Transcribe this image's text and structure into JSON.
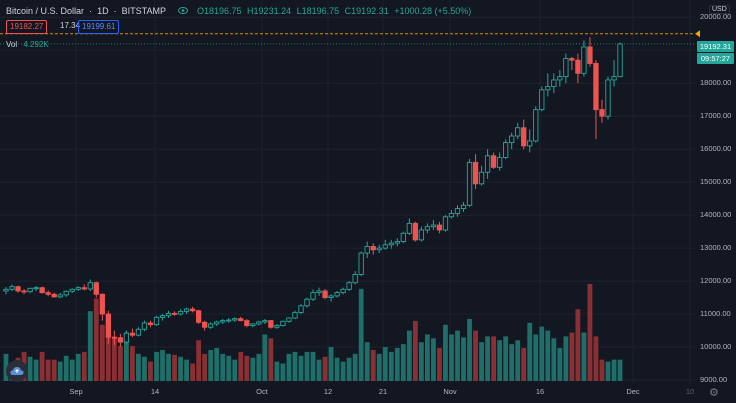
{
  "symbol": {
    "name": "Bitcoin / U.S. Dollar",
    "interval": "1D",
    "exchange": "BITSTAMP",
    "open": "O18196.75",
    "high": "H19231.24",
    "low": "L18196.75",
    "close": "C19192.31",
    "change": "+1000.28 (+5.50%)"
  },
  "trade": {
    "sell": "19182.27",
    "spread": "17.34",
    "buy": "19199.61"
  },
  "volume": {
    "label": "Vol",
    "value": "4.292K"
  },
  "price_axis": {
    "currency": "USD",
    "ticks": [
      "20000.00",
      "19000.00",
      "18000.00",
      "17000.00",
      "16000.00",
      "15000.00",
      "14000.00",
      "13000.00",
      "12000.00",
      "11000.00",
      "10000.00",
      "9000.00"
    ],
    "last_price": "19192.31",
    "countdown": "09:57:27"
  },
  "time_axis": [
    "Sep",
    "14",
    "Oct",
    "12",
    "21",
    "Nov",
    "16",
    "Dec",
    "10"
  ],
  "colors": {
    "up": "#26a69a",
    "down": "#ef5350",
    "vol_up": "#1e6f69",
    "vol_down": "#8a2f33",
    "grid": "#1e222d",
    "alert": "#f7a600"
  },
  "icons": {
    "visibility": "eye-icon",
    "settings": "gear-icon",
    "logo": "tradingview-cloud-icon"
  },
  "chart_data": {
    "type": "candlestick",
    "series": [
      {
        "ohlc": [
          [
            11700,
            11820,
            11600,
            11750
          ],
          [
            11750,
            11900,
            11700,
            11830
          ],
          [
            11830,
            11860,
            11650,
            11700
          ],
          [
            11700,
            11760,
            11600,
            11680
          ],
          [
            11680,
            11800,
            11630,
            11780
          ],
          [
            11780,
            11850,
            11700,
            11800
          ],
          [
            11800,
            11830,
            11620,
            11650
          ],
          [
            11650,
            11720,
            11540,
            11600
          ],
          [
            11600,
            11650,
            11500,
            11520
          ],
          [
            11520,
            11640,
            11480,
            11580
          ],
          [
            11580,
            11720,
            11520,
            11690
          ],
          [
            11690,
            11780,
            11640,
            11750
          ],
          [
            11750,
            11840,
            11700,
            11800
          ],
          [
            11800,
            11900,
            11720,
            11760
          ],
          [
            11760,
            12050,
            11700,
            11950
          ],
          [
            11950,
            11980,
            11500,
            11600
          ],
          [
            11600,
            11620,
            10800,
            11000
          ],
          [
            11000,
            11100,
            10100,
            10300
          ],
          [
            10300,
            10500,
            10050,
            10280
          ],
          [
            10280,
            10400,
            10000,
            10150
          ],
          [
            10150,
            10500,
            10100,
            10420
          ],
          [
            10420,
            10560,
            10300,
            10360
          ],
          [
            10360,
            10600,
            10320,
            10540
          ],
          [
            10540,
            10800,
            10480,
            10730
          ],
          [
            10730,
            10800,
            10600,
            10680
          ],
          [
            10680,
            10950,
            10640,
            10900
          ],
          [
            10900,
            11000,
            10800,
            10950
          ],
          [
            10950,
            11100,
            10880,
            11020
          ],
          [
            11020,
            11080,
            10950,
            11000
          ],
          [
            11000,
            11150,
            10960,
            11080
          ],
          [
            11080,
            11200,
            11000,
            11150
          ],
          [
            11150,
            11220,
            11050,
            11100
          ],
          [
            11100,
            11130,
            10700,
            10750
          ],
          [
            10750,
            10800,
            10500,
            10600
          ],
          [
            10600,
            10750,
            10550,
            10700
          ],
          [
            10700,
            10800,
            10640,
            10760
          ],
          [
            10760,
            10850,
            10700,
            10800
          ],
          [
            10800,
            10880,
            10740,
            10820
          ],
          [
            10820,
            10900,
            10760,
            10860
          ],
          [
            10860,
            10920,
            10780,
            10800
          ],
          [
            10800,
            10850,
            10600,
            10650
          ],
          [
            10650,
            10720,
            10600,
            10700
          ],
          [
            10700,
            10800,
            10660,
            10760
          ],
          [
            10760,
            10850,
            10700,
            10800
          ],
          [
            10800,
            10820,
            10560,
            10600
          ],
          [
            10600,
            10700,
            10550,
            10650
          ],
          [
            10650,
            10800,
            10620,
            10780
          ],
          [
            10780,
            10900,
            10740,
            10880
          ],
          [
            10880,
            11100,
            10850,
            11050
          ],
          [
            11050,
            11300,
            11000,
            11250
          ],
          [
            11250,
            11500,
            11200,
            11450
          ],
          [
            11450,
            11750,
            11400,
            11650
          ],
          [
            11650,
            11800,
            11550,
            11700
          ],
          [
            11700,
            11760,
            11450,
            11500
          ],
          [
            11500,
            11600,
            11380,
            11550
          ],
          [
            11550,
            11700,
            11500,
            11650
          ],
          [
            11650,
            11800,
            11600,
            11750
          ],
          [
            11750,
            12000,
            11700,
            11950
          ],
          [
            11950,
            12300,
            11900,
            12200
          ],
          [
            12200,
            12900,
            12150,
            12850
          ],
          [
            12850,
            13200,
            12700,
            13050
          ],
          [
            13050,
            13150,
            12800,
            12950
          ],
          [
            12950,
            13100,
            12850,
            13000
          ],
          [
            13000,
            13250,
            12950,
            13100
          ],
          [
            13100,
            13250,
            12980,
            13150
          ],
          [
            13150,
            13300,
            13050,
            13200
          ],
          [
            13200,
            13500,
            13150,
            13450
          ],
          [
            13450,
            13900,
            13400,
            13750
          ],
          [
            13750,
            13800,
            13200,
            13250
          ],
          [
            13250,
            13650,
            13200,
            13550
          ],
          [
            13550,
            13750,
            13450,
            13650
          ],
          [
            13650,
            13850,
            13550,
            13700
          ],
          [
            13700,
            13800,
            13450,
            13550
          ],
          [
            13550,
            14000,
            13500,
            13950
          ],
          [
            13950,
            14150,
            13900,
            14050
          ],
          [
            14050,
            14300,
            13950,
            14200
          ],
          [
            14200,
            14400,
            14100,
            14300
          ],
          [
            14300,
            15700,
            14250,
            15600
          ],
          [
            15600,
            15850,
            14800,
            14950
          ],
          [
            14950,
            15500,
            14900,
            15300
          ],
          [
            15300,
            16000,
            15100,
            15800
          ],
          [
            15800,
            15900,
            15400,
            15450
          ],
          [
            15450,
            15900,
            15350,
            15750
          ],
          [
            15750,
            16300,
            15700,
            16200
          ],
          [
            16200,
            16500,
            16000,
            16400
          ],
          [
            16400,
            16800,
            16300,
            16650
          ],
          [
            16650,
            16900,
            16000,
            16100
          ],
          [
            16100,
            16600,
            15900,
            16250
          ],
          [
            16250,
            17300,
            16200,
            17200
          ],
          [
            17200,
            17900,
            17150,
            17800
          ],
          [
            17800,
            18300,
            17600,
            17900
          ],
          [
            17900,
            18300,
            17700,
            18100
          ],
          [
            18100,
            18400,
            17900,
            18200
          ],
          [
            18200,
            18900,
            18000,
            18750
          ],
          [
            18750,
            18800,
            18400,
            18700
          ],
          [
            18700,
            18900,
            18000,
            18300
          ],
          [
            18300,
            19300,
            18200,
            19100
          ],
          [
            19100,
            19400,
            18500,
            18600
          ],
          [
            18600,
            18700,
            16300,
            17200
          ],
          [
            17200,
            17500,
            16800,
            17000
          ],
          [
            17000,
            18200,
            16900,
            18100
          ],
          [
            18100,
            18700,
            17900,
            18200
          ],
          [
            18200,
            19231,
            18196,
            19192
          ]
        ],
        "volume": [
          0.28,
          0.18,
          0.24,
          0.3,
          0.25,
          0.22,
          0.3,
          0.22,
          0.22,
          0.2,
          0.26,
          0.22,
          0.28,
          0.3,
          0.72,
          0.85,
          0.58,
          0.52,
          0.45,
          0.36,
          0.5,
          0.36,
          0.28,
          0.25,
          0.2,
          0.3,
          0.32,
          0.28,
          0.27,
          0.25,
          0.22,
          0.18,
          0.42,
          0.28,
          0.32,
          0.34,
          0.28,
          0.26,
          0.22,
          0.3,
          0.26,
          0.24,
          0.28,
          0.48,
          0.44,
          0.2,
          0.18,
          0.28,
          0.3,
          0.26,
          0.3,
          0.3,
          0.22,
          0.25,
          0.35,
          0.24,
          0.2,
          0.24,
          0.28,
          0.95,
          0.4,
          0.32,
          0.28,
          0.35,
          0.3,
          0.34,
          0.38,
          0.52,
          0.62,
          0.4,
          0.48,
          0.44,
          0.34,
          0.58,
          0.48,
          0.52,
          0.45,
          0.64,
          0.52,
          0.4,
          0.46,
          0.46,
          0.42,
          0.46,
          0.38,
          0.42,
          0.34,
          0.6,
          0.48,
          0.56,
          0.52,
          0.44,
          0.34,
          0.46,
          0.5,
          0.74,
          0.5,
          1.0,
          0.46,
          0.22,
          0.2,
          0.22,
          0.22
        ]
      }
    ],
    "x_labels": [
      "Sep",
      "14",
      "Oct",
      "12",
      "21",
      "Nov",
      "16",
      "Dec",
      "10"
    ],
    "ylim": [
      9000,
      20100
    ],
    "grid": true,
    "last_price": 19192.31,
    "alert_price": 19500
  }
}
